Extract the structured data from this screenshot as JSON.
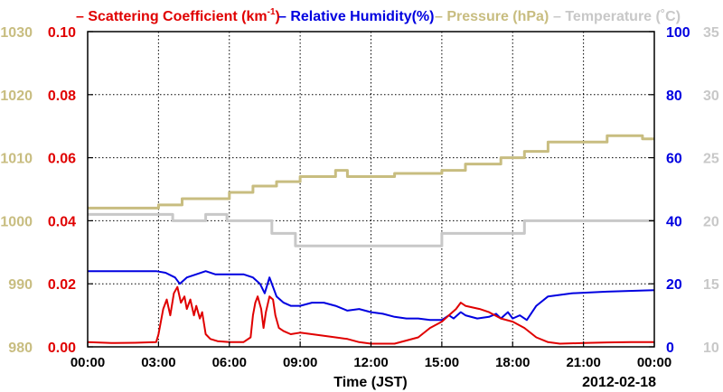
{
  "chart_data": {
    "type": "line",
    "legend": {
      "items": [
        {
          "label": "Scattering Coefficient (km",
          "sup": "-1",
          "suffix": ")",
          "color": "#e00000"
        },
        {
          "label": "Relative Humidity(%)",
          "color": "#0000e0"
        },
        {
          "label": "Pressure (hPa)",
          "color": "#c8bd80"
        },
        {
          "label": "Temperature (˚C)",
          "color": "#c8c8c8"
        }
      ],
      "placement": "top"
    },
    "xlabel": "Time (JST)",
    "date_label": "2012-02-18",
    "xlim": [
      0,
      24
    ],
    "x_ticks": [
      "00:00",
      "03:00",
      "06:00",
      "09:00",
      "12:00",
      "15:00",
      "18:00",
      "21:00",
      "00:00"
    ],
    "grid": true,
    "axes": {
      "pressure": {
        "side": "left-outer",
        "range": [
          980,
          1030
        ],
        "ticks": [
          "980",
          "990",
          "1000",
          "1010",
          "1020",
          "1030"
        ],
        "color": "#c8bd80"
      },
      "scattering": {
        "side": "left-inner",
        "range": [
          0,
          0.1
        ],
        "ticks": [
          "0.00",
          "0.02",
          "0.04",
          "0.06",
          "0.08",
          "0.10"
        ],
        "color": "#e00000"
      },
      "humidity": {
        "side": "right-inner",
        "range": [
          0,
          100
        ],
        "ticks": [
          "0",
          "20",
          "40",
          "60",
          "80",
          "100"
        ],
        "color": "#0000e0"
      },
      "temperature": {
        "side": "right-outer",
        "range": [
          10,
          35
        ],
        "ticks": [
          "10",
          "15",
          "20",
          "25",
          "30",
          "35"
        ],
        "color": "#c8c8c8"
      }
    },
    "series": [
      {
        "name": "Pressure (hPa)",
        "axis": "pressure",
        "color": "#c8bd80",
        "step": true,
        "points": [
          [
            0,
            1002
          ],
          [
            3.0,
            1002
          ],
          [
            3.0,
            1002.5
          ],
          [
            4.0,
            1002.5
          ],
          [
            4.0,
            1003.5
          ],
          [
            6.0,
            1003.5
          ],
          [
            6.0,
            1004.5
          ],
          [
            7.0,
            1004.5
          ],
          [
            7.0,
            1005.5
          ],
          [
            8.0,
            1005.5
          ],
          [
            8.0,
            1006.2
          ],
          [
            9.0,
            1006.2
          ],
          [
            9.0,
            1007.0
          ],
          [
            10.5,
            1007.0
          ],
          [
            10.5,
            1008.0
          ],
          [
            11.0,
            1008.0
          ],
          [
            11.0,
            1007.0
          ],
          [
            13.0,
            1007.0
          ],
          [
            13.0,
            1007.5
          ],
          [
            15.0,
            1007.5
          ],
          [
            15.0,
            1008.0
          ],
          [
            16.0,
            1008.0
          ],
          [
            16.0,
            1009.0
          ],
          [
            17.5,
            1009.0
          ],
          [
            17.5,
            1010.0
          ],
          [
            18.5,
            1010.0
          ],
          [
            18.5,
            1011.0
          ],
          [
            19.5,
            1011.0
          ],
          [
            19.5,
            1012.5
          ],
          [
            22.0,
            1012.5
          ],
          [
            22.0,
            1013.5
          ],
          [
            23.5,
            1013.5
          ],
          [
            23.5,
            1013.0
          ],
          [
            24,
            1013.0
          ]
        ]
      },
      {
        "name": "Temperature (˚C)",
        "axis": "temperature",
        "color": "#c8c8c8",
        "step": true,
        "points": [
          [
            0,
            20.5
          ],
          [
            3.6,
            20.5
          ],
          [
            3.6,
            20.0
          ],
          [
            5.0,
            20.0
          ],
          [
            5.0,
            20.5
          ],
          [
            5.9,
            20.5
          ],
          [
            5.9,
            20.0
          ],
          [
            7.8,
            20.0
          ],
          [
            7.8,
            19.0
          ],
          [
            8.8,
            19.0
          ],
          [
            8.8,
            18.0
          ],
          [
            15.0,
            18.0
          ],
          [
            15.0,
            19.0
          ],
          [
            18.5,
            19.0
          ],
          [
            18.5,
            20.0
          ],
          [
            24,
            20.0
          ]
        ]
      },
      {
        "name": "Relative Humidity(%)",
        "axis": "humidity",
        "color": "#0000e0",
        "step": false,
        "points": [
          [
            0,
            24
          ],
          [
            2.9,
            24
          ],
          [
            3.3,
            23.5
          ],
          [
            3.7,
            22
          ],
          [
            3.9,
            20
          ],
          [
            4.2,
            22
          ],
          [
            4.6,
            23
          ],
          [
            5.0,
            24
          ],
          [
            5.4,
            23
          ],
          [
            6.0,
            23
          ],
          [
            6.6,
            23
          ],
          [
            7.0,
            22
          ],
          [
            7.3,
            20
          ],
          [
            7.5,
            17
          ],
          [
            7.7,
            22
          ],
          [
            8.0,
            16
          ],
          [
            8.3,
            14
          ],
          [
            8.6,
            13
          ],
          [
            9.0,
            13
          ],
          [
            9.5,
            14
          ],
          [
            10.0,
            14
          ],
          [
            10.5,
            13
          ],
          [
            11.0,
            11.5
          ],
          [
            11.5,
            12
          ],
          [
            12.0,
            11
          ],
          [
            12.5,
            10.5
          ],
          [
            13.0,
            9.5
          ],
          [
            13.5,
            9
          ],
          [
            14.0,
            9
          ],
          [
            14.5,
            8.5
          ],
          [
            15.0,
            8.5
          ],
          [
            15.3,
            10
          ],
          [
            15.5,
            9
          ],
          [
            15.8,
            11
          ],
          [
            16.0,
            10
          ],
          [
            16.5,
            9
          ],
          [
            17.0,
            9.5
          ],
          [
            17.3,
            10.5
          ],
          [
            17.5,
            9
          ],
          [
            17.8,
            11
          ],
          [
            18.0,
            9
          ],
          [
            18.3,
            10
          ],
          [
            18.6,
            8.5
          ],
          [
            19.0,
            13
          ],
          [
            19.5,
            16
          ],
          [
            20.5,
            17
          ],
          [
            22.0,
            17.5
          ],
          [
            24,
            18
          ]
        ]
      },
      {
        "name": "Scattering Coefficient (km-1)",
        "axis": "scattering",
        "color": "#e00000",
        "step": false,
        "points": [
          [
            0,
            0.0015
          ],
          [
            1.0,
            0.0012
          ],
          [
            2.0,
            0.0013
          ],
          [
            2.9,
            0.0015
          ],
          [
            3.0,
            0.004
          ],
          [
            3.2,
            0.012
          ],
          [
            3.35,
            0.015
          ],
          [
            3.5,
            0.01
          ],
          [
            3.65,
            0.017
          ],
          [
            3.8,
            0.019
          ],
          [
            3.95,
            0.014
          ],
          [
            4.1,
            0.016
          ],
          [
            4.2,
            0.012
          ],
          [
            4.35,
            0.015
          ],
          [
            4.5,
            0.01
          ],
          [
            4.6,
            0.013
          ],
          [
            4.75,
            0.009
          ],
          [
            4.85,
            0.011
          ],
          [
            5.0,
            0.004
          ],
          [
            5.2,
            0.0025
          ],
          [
            5.5,
            0.0018
          ],
          [
            6.0,
            0.0015
          ],
          [
            6.6,
            0.0015
          ],
          [
            6.9,
            0.003
          ],
          [
            7.0,
            0.01
          ],
          [
            7.1,
            0.014
          ],
          [
            7.2,
            0.016
          ],
          [
            7.35,
            0.012
          ],
          [
            7.45,
            0.006
          ],
          [
            7.55,
            0.011
          ],
          [
            7.7,
            0.016
          ],
          [
            7.85,
            0.015
          ],
          [
            7.95,
            0.01
          ],
          [
            8.1,
            0.006
          ],
          [
            8.3,
            0.005
          ],
          [
            8.6,
            0.004
          ],
          [
            9.0,
            0.0045
          ],
          [
            9.5,
            0.004
          ],
          [
            10.0,
            0.0035
          ],
          [
            10.5,
            0.003
          ],
          [
            11.0,
            0.0025
          ],
          [
            11.5,
            0.0015
          ],
          [
            12.0,
            0.001
          ],
          [
            13.0,
            0.001
          ],
          [
            14.0,
            0.003
          ],
          [
            14.5,
            0.006
          ],
          [
            15.0,
            0.008
          ],
          [
            15.3,
            0.01
          ],
          [
            15.6,
            0.012
          ],
          [
            15.8,
            0.014
          ],
          [
            16.0,
            0.013
          ],
          [
            16.3,
            0.0125
          ],
          [
            16.6,
            0.012
          ],
          [
            17.0,
            0.011
          ],
          [
            17.5,
            0.009
          ],
          [
            18.0,
            0.008
          ],
          [
            18.5,
            0.006
          ],
          [
            19.0,
            0.003
          ],
          [
            19.5,
            0.0015
          ],
          [
            20.0,
            0.001
          ],
          [
            21.0,
            0.0012
          ],
          [
            22.0,
            0.0014
          ],
          [
            23.0,
            0.0015
          ],
          [
            24,
            0.0015
          ]
        ]
      }
    ]
  }
}
